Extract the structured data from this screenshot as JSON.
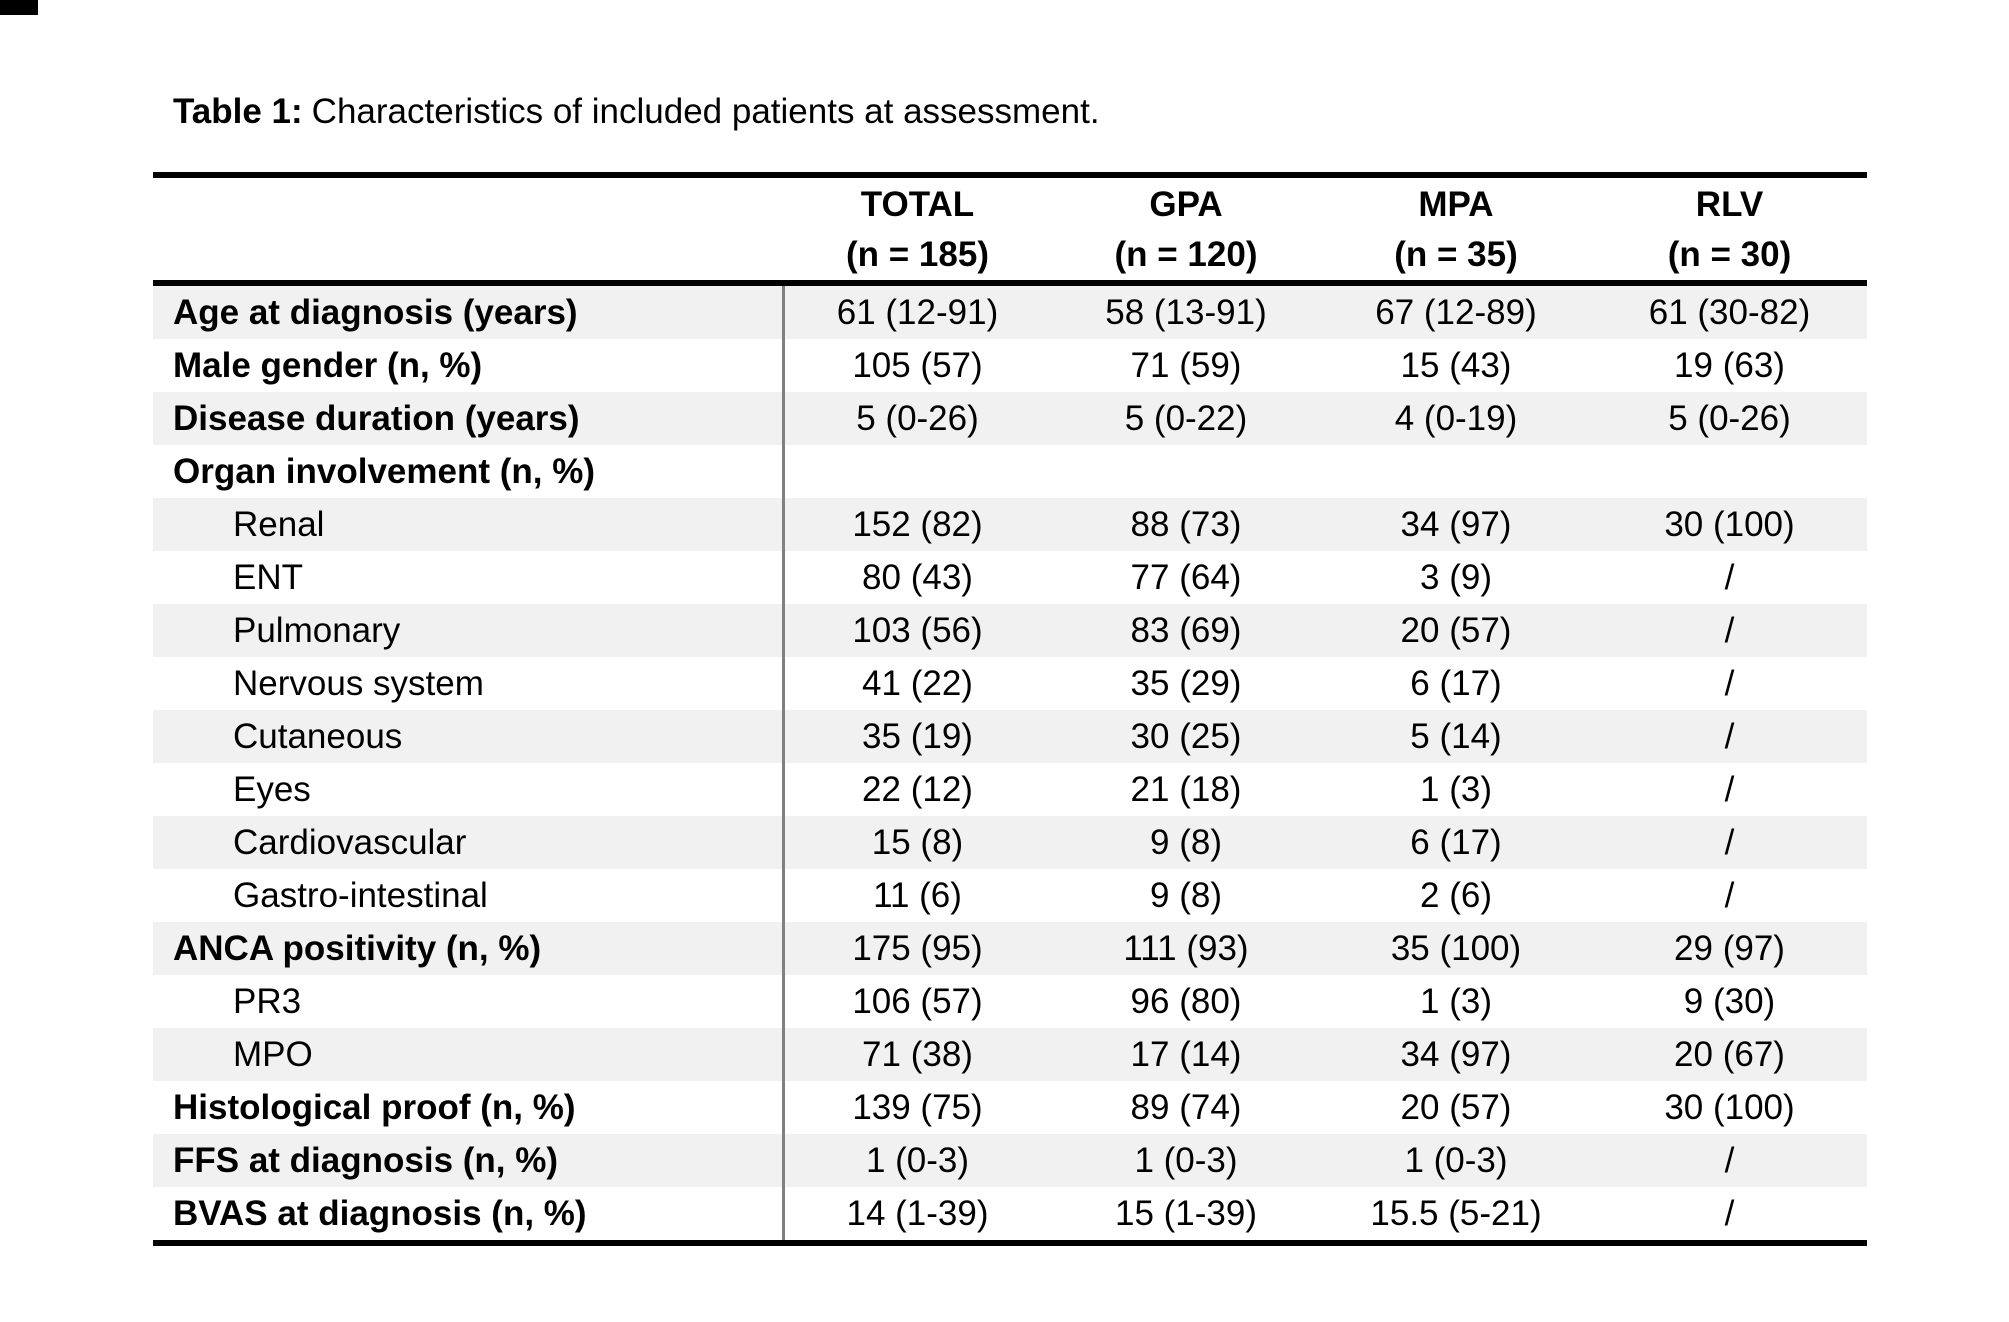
{
  "title": {
    "label": "Table 1:",
    "text": "Characteristics of included patients at assessment."
  },
  "table": {
    "columns": [
      {
        "name": "TOTAL",
        "n": "(n = 185)"
      },
      {
        "name": "GPA",
        "n": "(n = 120)"
      },
      {
        "name": "MPA",
        "n": "(n = 35)"
      },
      {
        "name": "RLV",
        "n": "(n = 30)"
      }
    ],
    "rows": [
      {
        "label": "Age at diagnosis (years)",
        "bold": true,
        "indent": false,
        "values": [
          "61 (12-91)",
          "58 (13-91)",
          "67 (12-89)",
          "61 (30-82)"
        ]
      },
      {
        "label": "Male gender (n, %)",
        "bold": true,
        "indent": false,
        "values": [
          "105 (57)",
          "71 (59)",
          "15 (43)",
          "19 (63)"
        ]
      },
      {
        "label": "Disease duration (years)",
        "bold": true,
        "indent": false,
        "values": [
          "5 (0-26)",
          "5 (0-22)",
          "4 (0-19)",
          "5 (0-26)"
        ]
      },
      {
        "label": "Organ involvement (n, %)",
        "bold": true,
        "indent": false,
        "values": [
          "",
          "",
          "",
          ""
        ]
      },
      {
        "label": "Renal",
        "bold": false,
        "indent": true,
        "values": [
          "152 (82)",
          "88 (73)",
          "34 (97)",
          "30 (100)"
        ]
      },
      {
        "label": "ENT",
        "bold": false,
        "indent": true,
        "values": [
          "80 (43)",
          "77 (64)",
          "3 (9)",
          "/"
        ]
      },
      {
        "label": "Pulmonary",
        "bold": false,
        "indent": true,
        "values": [
          "103 (56)",
          "83 (69)",
          "20 (57)",
          "/"
        ]
      },
      {
        "label": "Nervous system",
        "bold": false,
        "indent": true,
        "values": [
          "41 (22)",
          "35 (29)",
          "6 (17)",
          "/"
        ]
      },
      {
        "label": "Cutaneous",
        "bold": false,
        "indent": true,
        "values": [
          "35 (19)",
          "30 (25)",
          "5 (14)",
          "/"
        ]
      },
      {
        "label": "Eyes",
        "bold": false,
        "indent": true,
        "values": [
          "22 (12)",
          "21 (18)",
          "1 (3)",
          "/"
        ]
      },
      {
        "label": "Cardiovascular",
        "bold": false,
        "indent": true,
        "values": [
          "15 (8)",
          "9 (8)",
          "6 (17)",
          "/"
        ]
      },
      {
        "label": "Gastro-intestinal",
        "bold": false,
        "indent": true,
        "values": [
          "11 (6)",
          "9 (8)",
          "2 (6)",
          "/"
        ]
      },
      {
        "label": "ANCA positivity (n, %)",
        "bold": true,
        "indent": false,
        "values": [
          "175 (95)",
          "111 (93)",
          "35 (100)",
          "29 (97)"
        ]
      },
      {
        "label": "PR3",
        "bold": false,
        "indent": true,
        "values": [
          "106 (57)",
          "96 (80)",
          "1 (3)",
          "9 (30)"
        ]
      },
      {
        "label": "MPO",
        "bold": false,
        "indent": true,
        "values": [
          "71 (38)",
          "17 (14)",
          "34 (97)",
          "20 (67)"
        ]
      },
      {
        "label": "Histological proof (n, %)",
        "bold": true,
        "indent": false,
        "values": [
          "139 (75)",
          "89 (74)",
          "20 (57)",
          "30 (100)"
        ]
      },
      {
        "label": "FFS at diagnosis (n, %)",
        "bold": true,
        "indent": false,
        "values": [
          "1 (0-3)",
          "1 (0-3)",
          "1 (0-3)",
          "/"
        ]
      },
      {
        "label": "BVAS at diagnosis (n, %)",
        "bold": true,
        "indent": false,
        "values": [
          "14 (1-39)",
          "15 (1-39)",
          "15.5 (5-21)",
          "/"
        ]
      }
    ]
  },
  "colors": {
    "background": "#ffffff",
    "row_shade": "#f1f1f1",
    "rule_color": "#000000",
    "divider_color": "#808080",
    "text_color": "#000000"
  }
}
